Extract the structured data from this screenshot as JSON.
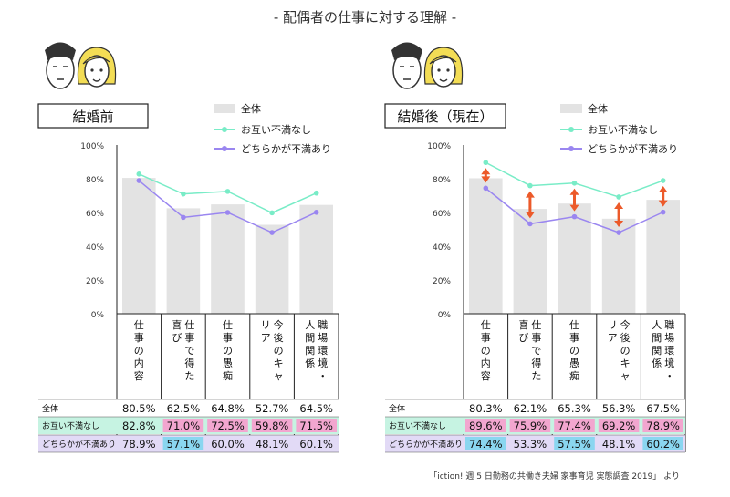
{
  "title": "- 配偶者の仕事に対する理解 -",
  "source": "「iction! 週 5 日勤務の共働き夫婦 家事育児 実態調査 2019」 より",
  "colors": {
    "bar": "#e3e3e3",
    "mutual_line": "#79ecc7",
    "either_line": "#9a86f0",
    "arrow": "#ec5a2a",
    "row_mutual_bg": "#c6f3e2",
    "row_either_bg": "#e2daf6",
    "cell_pink": "#f2a6cf",
    "cell_blue": "#8ad6f0",
    "cell_white": "#ffffff"
  },
  "icons": [
    "man-face-icon",
    "woman-face-icon"
  ],
  "chart_data": [
    {
      "type": "bar+line",
      "title": "結婚前",
      "categories": [
        "仕事の内容",
        "仕事で得た喜び",
        "仕事の愚痴",
        "今後のキャリア",
        "職場環境・人間関係"
      ],
      "ylim": [
        0,
        100
      ],
      "yticks": [
        "0%",
        "20%",
        "40%",
        "60%",
        "80%",
        "100%"
      ],
      "grid": false,
      "legend_position": "top-right",
      "series": [
        {
          "name": "全体",
          "kind": "bar",
          "values": [
            80.5,
            62.5,
            64.8,
            52.7,
            64.5
          ],
          "labels": [
            "80.5%",
            "62.5%",
            "64.8%",
            "52.7%",
            "64.5%"
          ]
        },
        {
          "name": "お互い不満なし",
          "kind": "line",
          "values": [
            82.8,
            71.0,
            72.5,
            59.8,
            71.5
          ],
          "labels": [
            "82.8%",
            "71.0%",
            "72.5%",
            "59.8%",
            "71.5%"
          ],
          "highlight": [
            false,
            true,
            true,
            true,
            true
          ]
        },
        {
          "name": "どちらかが不満あり",
          "kind": "line",
          "values": [
            78.9,
            57.1,
            60.0,
            48.1,
            60.1
          ],
          "labels": [
            "78.9%",
            "57.1%",
            "60.0%",
            "48.1%",
            "60.1%"
          ],
          "highlight": [
            false,
            true,
            false,
            false,
            false
          ]
        }
      ],
      "arrows": [
        false,
        false,
        false,
        false,
        false
      ]
    },
    {
      "type": "bar+line",
      "title": "結婚後（現在）",
      "categories": [
        "仕事の内容",
        "仕事で得た喜び",
        "仕事の愚痴",
        "今後のキャリア",
        "職場環境・人間関係"
      ],
      "ylim": [
        0,
        100
      ],
      "yticks": [
        "0%",
        "20%",
        "40%",
        "60%",
        "80%",
        "100%"
      ],
      "grid": false,
      "legend_position": "top-right",
      "series": [
        {
          "name": "全体",
          "kind": "bar",
          "values": [
            80.3,
            62.1,
            65.3,
            56.3,
            67.5
          ],
          "labels": [
            "80.3%",
            "62.1%",
            "65.3%",
            "56.3%",
            "67.5%"
          ]
        },
        {
          "name": "お互い不満なし",
          "kind": "line",
          "values": [
            89.6,
            75.9,
            77.4,
            69.2,
            78.9
          ],
          "labels": [
            "89.6%",
            "75.9%",
            "77.4%",
            "69.2%",
            "78.9%"
          ],
          "highlight": [
            true,
            true,
            true,
            true,
            true
          ]
        },
        {
          "name": "どちらかが不満あり",
          "kind": "line",
          "values": [
            74.4,
            53.3,
            57.5,
            48.1,
            60.2
          ],
          "labels": [
            "74.4%",
            "53.3%",
            "57.5%",
            "48.1%",
            "60.2%"
          ],
          "highlight": [
            true,
            false,
            true,
            false,
            true
          ]
        }
      ],
      "arrows": [
        true,
        true,
        true,
        true,
        true
      ]
    }
  ]
}
